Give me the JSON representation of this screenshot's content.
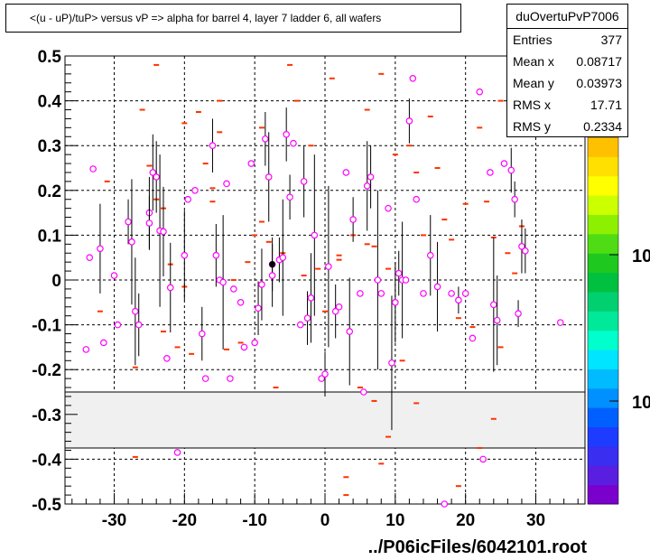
{
  "chart_data": {
    "type": "scatter",
    "title": "<(u - uP)/tuP> versus   vP => alpha for barrel 4, layer 7 ladder 6, all wafers",
    "xlim": [
      -37,
      37
    ],
    "ylim": [
      -0.5,
      0.5
    ],
    "x_ticks": [
      -30,
      -20,
      -10,
      0,
      10,
      20,
      30
    ],
    "x_tick_labels": [
      "-30",
      "-20",
      "-10",
      "0",
      "10",
      "20",
      "30"
    ],
    "y_ticks": [
      -0.5,
      -0.4,
      -0.3,
      -0.2,
      -0.1,
      0,
      0.1,
      0.2,
      0.3,
      0.4,
      0.5
    ],
    "y_tick_labels": [
      "-0.5",
      "-0.4",
      "-0.3",
      "-0.2",
      "-0.1",
      "0",
      "0.1",
      "0.2",
      "0.3",
      "0.4",
      "0.5"
    ],
    "grid": true,
    "shaded_band_y": [
      -0.375,
      -0.25
    ],
    "colorbar_labels": [
      "10",
      "10"
    ],
    "colorbar_colors": [
      "#7a00cc",
      "#5a1ee0",
      "#3a2ef0",
      "#1e3cff",
      "#0060ff",
      "#0090ff",
      "#00bbff",
      "#00e5ff",
      "#00ffcc",
      "#00e89a",
      "#00d070",
      "#00c040",
      "#1ec81e",
      "#50dc14",
      "#8cf000",
      "#ccff00",
      "#ffff00",
      "#ffe000",
      "#ffc000"
    ],
    "stats": {
      "name": "duOvertuPvP7006",
      "rows": [
        {
          "label": "Entries",
          "value": "377"
        },
        {
          "label": "Mean x",
          "value": "0.08717"
        },
        {
          "label": "Mean y",
          "value": "0.03973"
        },
        {
          "label": "RMS x",
          "value": "17.71"
        },
        {
          "label": "RMS y",
          "value": "0.2334"
        }
      ]
    },
    "profile_points": [
      {
        "x": -34,
        "y": -0.155,
        "e": 0
      },
      {
        "x": -33.5,
        "y": 0.05,
        "e": 0
      },
      {
        "x": -33,
        "y": 0.248,
        "e": 0
      },
      {
        "x": -32,
        "y": 0.07,
        "e": 0.1
      },
      {
        "x": -31.5,
        "y": -0.14,
        "e": 0
      },
      {
        "x": -30,
        "y": 0.01,
        "e": 0
      },
      {
        "x": -29.5,
        "y": -0.1,
        "e": 0
      },
      {
        "x": -28,
        "y": 0.13,
        "e": 0.05
      },
      {
        "x": -27.5,
        "y": 0.085,
        "e": 0.14
      },
      {
        "x": -27,
        "y": -0.07,
        "e": 0.12
      },
      {
        "x": -26.5,
        "y": -0.1,
        "e": 0.07
      },
      {
        "x": -25,
        "y": 0.15,
        "e": 0.08
      },
      {
        "x": -25,
        "y": 0.127,
        "e": 0.06
      },
      {
        "x": -24.5,
        "y": 0.24,
        "e": 0.085
      },
      {
        "x": -24,
        "y": 0.23,
        "e": 0.08
      },
      {
        "x": -23.5,
        "y": 0.11,
        "e": 0.17
      },
      {
        "x": -23,
        "y": 0.108,
        "e": 0.1
      },
      {
        "x": -22.5,
        "y": -0.175,
        "e": 0
      },
      {
        "x": -22,
        "y": -0.017,
        "e": 0.1
      },
      {
        "x": -21,
        "y": -0.385,
        "e": 0
      },
      {
        "x": -20,
        "y": 0.055,
        "e": 0.1
      },
      {
        "x": -19.5,
        "y": 0.18,
        "e": 0
      },
      {
        "x": -18.5,
        "y": 0.2,
        "e": 0
      },
      {
        "x": -17.5,
        "y": -0.12,
        "e": 0.06
      },
      {
        "x": -17,
        "y": -0.22,
        "e": 0
      },
      {
        "x": -16,
        "y": 0.3,
        "e": 0.06
      },
      {
        "x": -15.5,
        "y": 0.055,
        "e": 0.07
      },
      {
        "x": -15,
        "y": 0.0,
        "e": 0
      },
      {
        "x": -14.5,
        "y": -0.005,
        "e": 0.15
      },
      {
        "x": -14,
        "y": 0.215,
        "e": 0
      },
      {
        "x": -13.5,
        "y": -0.22,
        "e": 0
      },
      {
        "x": -13,
        "y": -0.02,
        "e": 0
      },
      {
        "x": -12,
        "y": -0.05,
        "e": 0
      },
      {
        "x": -11.5,
        "y": -0.15,
        "e": 0
      },
      {
        "x": -10.5,
        "y": 0.26,
        "e": 0
      },
      {
        "x": -10,
        "y": -0.14,
        "e": 0
      },
      {
        "x": -9.5,
        "y": -0.063,
        "e": 0.06
      },
      {
        "x": -9,
        "y": -0.01,
        "e": 0.08
      },
      {
        "x": -8.5,
        "y": 0.315,
        "e": 0.06
      },
      {
        "x": -8,
        "y": 0.23,
        "e": 0.1
      },
      {
        "x": -7.5,
        "y": 0.035,
        "e": 0.06
      },
      {
        "x": -7.5,
        "y": 0.01,
        "e": 0.07
      },
      {
        "x": -6.5,
        "y": 0.045,
        "e": 0.05
      },
      {
        "x": -6,
        "y": 0.05,
        "e": 0.13
      },
      {
        "x": -5.5,
        "y": 0.325,
        "e": 0.06
      },
      {
        "x": -5,
        "y": 0.185,
        "e": 0.05
      },
      {
        "x": -4.5,
        "y": 0.305,
        "e": 0
      },
      {
        "x": -3.5,
        "y": -0.1,
        "e": 0
      },
      {
        "x": -3,
        "y": 0.22,
        "e": 0.08
      },
      {
        "x": -2.5,
        "y": -0.085,
        "e": 0.06
      },
      {
        "x": -2,
        "y": -0.04,
        "e": 0.1
      },
      {
        "x": -1.5,
        "y": 0.1,
        "e": 0.18
      },
      {
        "x": -0.5,
        "y": -0.22,
        "e": 0
      },
      {
        "x": 0,
        "y": -0.21,
        "e": 0.05
      },
      {
        "x": 0.5,
        "y": 0.03,
        "e": 0.18
      },
      {
        "x": 1.5,
        "y": -0.07,
        "e": 0.06
      },
      {
        "x": 2,
        "y": -0.06,
        "e": 0
      },
      {
        "x": 3,
        "y": 0.24,
        "e": 0
      },
      {
        "x": 3.5,
        "y": -0.115,
        "e": 0.12
      },
      {
        "x": 4,
        "y": 0.135,
        "e": 0.05
      },
      {
        "x": 5,
        "y": -0.03,
        "e": 0
      },
      {
        "x": 5.5,
        "y": -0.25,
        "e": 0
      },
      {
        "x": 6,
        "y": 0.21,
        "e": 0.1
      },
      {
        "x": 6.5,
        "y": 0.23,
        "e": 0.07
      },
      {
        "x": 7.5,
        "y": 0.0,
        "e": 0.2
      },
      {
        "x": 8,
        "y": -0.03,
        "e": 0
      },
      {
        "x": 9,
        "y": 0.16,
        "e": 0
      },
      {
        "x": 9.5,
        "y": -0.185,
        "e": 0.15
      },
      {
        "x": 10,
        "y": -0.05,
        "e": 0.09
      },
      {
        "x": 10.5,
        "y": 0.015,
        "e": 0.05
      },
      {
        "x": 11,
        "y": 0.0,
        "e": 0.13
      },
      {
        "x": 11.5,
        "y": 0.0,
        "e": 0
      },
      {
        "x": 12,
        "y": 0.355,
        "e": 0.05
      },
      {
        "x": 12.5,
        "y": 0.45,
        "e": 0
      },
      {
        "x": 13,
        "y": 0.18,
        "e": 0
      },
      {
        "x": 14,
        "y": -0.03,
        "e": 0
      },
      {
        "x": 15,
        "y": 0.055,
        "e": 0.09
      },
      {
        "x": 16,
        "y": -0.015,
        "e": 0.1
      },
      {
        "x": 17,
        "y": -0.5,
        "e": 0
      },
      {
        "x": 18,
        "y": -0.03,
        "e": 0
      },
      {
        "x": 19,
        "y": -0.045,
        "e": 0.03
      },
      {
        "x": 20,
        "y": -0.03,
        "e": 0
      },
      {
        "x": 21,
        "y": -0.13,
        "e": 0
      },
      {
        "x": 22,
        "y": 0.42,
        "e": 0
      },
      {
        "x": 22.5,
        "y": -0.4,
        "e": 0
      },
      {
        "x": 23.5,
        "y": 0.24,
        "e": 0
      },
      {
        "x": 24,
        "y": -0.055,
        "e": 0.15
      },
      {
        "x": 24.5,
        "y": -0.09,
        "e": 0.1
      },
      {
        "x": 25.5,
        "y": 0.26,
        "e": 0
      },
      {
        "x": 26.5,
        "y": 0.245,
        "e": 0.05
      },
      {
        "x": 27,
        "y": 0.18,
        "e": 0.04
      },
      {
        "x": 27.5,
        "y": -0.075,
        "e": 0.03
      },
      {
        "x": 28,
        "y": 0.075,
        "e": 0.06
      },
      {
        "x": 28.5,
        "y": 0.065,
        "e": 0.05
      },
      {
        "x": 33.5,
        "y": -0.095,
        "e": 0
      }
    ],
    "cell_points": [
      {
        "x": -32,
        "y": -0.07
      },
      {
        "x": -31,
        "y": 0.22
      },
      {
        "x": -27,
        "y": -0.195
      },
      {
        "x": -27,
        "y": -0.395
      },
      {
        "x": -26,
        "y": 0.38
      },
      {
        "x": -25,
        "y": 0.255
      },
      {
        "x": -24,
        "y": 0.48
      },
      {
        "x": -24,
        "y": 0.18
      },
      {
        "x": -23,
        "y": -0.115
      },
      {
        "x": -23,
        "y": 0.16
      },
      {
        "x": -22,
        "y": 0.035
      },
      {
        "x": -21,
        "y": -0.15
      },
      {
        "x": -20,
        "y": -0.015
      },
      {
        "x": -20,
        "y": 0.35
      },
      {
        "x": -19,
        "y": -0.165
      },
      {
        "x": -18,
        "y": 0.375
      },
      {
        "x": -17,
        "y": 0.26
      },
      {
        "x": -16,
        "y": 0.205
      },
      {
        "x": -16,
        "y": 0.175
      },
      {
        "x": -15,
        "y": 0.4
      },
      {
        "x": -15,
        "y": 0.33
      },
      {
        "x": -14,
        "y": -0.155
      },
      {
        "x": -13,
        "y": 0.0
      },
      {
        "x": -12,
        "y": -0.14
      },
      {
        "x": -11,
        "y": 0.04
      },
      {
        "x": -10,
        "y": 0.1
      },
      {
        "x": -9,
        "y": 0.13
      },
      {
        "x": -9,
        "y": 0.34
      },
      {
        "x": -8,
        "y": 0.085
      },
      {
        "x": -7,
        "y": -0.24
      },
      {
        "x": -6,
        "y": 0.06
      },
      {
        "x": -5,
        "y": 0.48
      },
      {
        "x": -4,
        "y": 0.4
      },
      {
        "x": -3,
        "y": 0.01
      },
      {
        "x": -2,
        "y": 0.3
      },
      {
        "x": -1,
        "y": 0.025
      },
      {
        "x": 0,
        "y": -0.07
      },
      {
        "x": 1,
        "y": 0.45
      },
      {
        "x": 2,
        "y": 0.045
      },
      {
        "x": 2,
        "y": 0.055
      },
      {
        "x": 3,
        "y": -0.48
      },
      {
        "x": 3,
        "y": -0.44
      },
      {
        "x": 4,
        "y": 0.1
      },
      {
        "x": 5,
        "y": -0.24
      },
      {
        "x": 6,
        "y": 0.38
      },
      {
        "x": 6,
        "y": 0.08
      },
      {
        "x": 7,
        "y": 0.075
      },
      {
        "x": 7,
        "y": -0.27
      },
      {
        "x": 8,
        "y": 0.46
      },
      {
        "x": 8,
        "y": -0.41
      },
      {
        "x": 9,
        "y": 0.025
      },
      {
        "x": 9,
        "y": -0.35
      },
      {
        "x": 10,
        "y": 0.28
      },
      {
        "x": 11,
        "y": -0.18
      },
      {
        "x": 12,
        "y": 0.3
      },
      {
        "x": 13,
        "y": -0.275
      },
      {
        "x": 13,
        "y": 0.24
      },
      {
        "x": 14,
        "y": 0.1
      },
      {
        "x": 15,
        "y": 0.365
      },
      {
        "x": 16,
        "y": 0.25
      },
      {
        "x": 17,
        "y": 0.135
      },
      {
        "x": 18,
        "y": 0.09
      },
      {
        "x": 19,
        "y": -0.085
      },
      {
        "x": 19,
        "y": -0.46
      },
      {
        "x": 20,
        "y": 0.17
      },
      {
        "x": 21,
        "y": -0.105
      },
      {
        "x": 22,
        "y": 0.34
      },
      {
        "x": 22,
        "y": -0.375
      },
      {
        "x": 23,
        "y": 0.175
      },
      {
        "x": 24,
        "y": 0.095
      },
      {
        "x": 24,
        "y": -0.31
      },
      {
        "x": 25,
        "y": -0.15
      },
      {
        "x": 25,
        "y": 0.4
      },
      {
        "x": 26,
        "y": 0.06
      },
      {
        "x": 27,
        "y": 0.015
      },
      {
        "x": 28,
        "y": 0.12
      }
    ]
  },
  "footer": "../P06icFiles/6042101.root"
}
